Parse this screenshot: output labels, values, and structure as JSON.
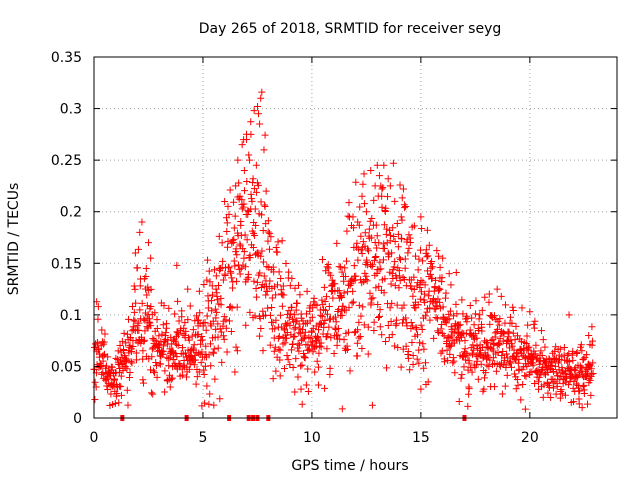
{
  "chart_data": {
    "type": "scatter",
    "title": "Day 265 of 2018, SRMTID for receiver seyg",
    "xlabel": "GPS time / hours",
    "ylabel": "SRMTID / TECUs",
    "xlim": [
      0,
      24
    ],
    "ylim": [
      0,
      0.35
    ],
    "xticks": [
      0,
      5,
      10,
      15,
      20
    ],
    "xtick_labels": [
      "0",
      "5",
      "10",
      "15",
      "20"
    ],
    "yticks": [
      0,
      0.05,
      0.1,
      0.15,
      0.2,
      0.25,
      0.3,
      0.35
    ],
    "ytick_labels": [
      "0",
      "0.05",
      "0.1",
      "0.15",
      "0.2",
      "0.25",
      "0.3",
      "0.35"
    ],
    "grid": true,
    "marker": "plus",
    "color": "#ff0000",
    "trend": [
      [
        0.0,
        0.06
      ],
      [
        0.4,
        0.055
      ],
      [
        0.7,
        0.04
      ],
      [
        1.0,
        0.035
      ],
      [
        1.3,
        0.05
      ],
      [
        1.7,
        0.07
      ],
      [
        2.0,
        0.1
      ],
      [
        2.4,
        0.09
      ],
      [
        2.8,
        0.075
      ],
      [
        3.2,
        0.065
      ],
      [
        3.7,
        0.06
      ],
      [
        4.1,
        0.07
      ],
      [
        4.5,
        0.06
      ],
      [
        5.0,
        0.075
      ],
      [
        5.5,
        0.1
      ],
      [
        5.9,
        0.12
      ],
      [
        6.3,
        0.15
      ],
      [
        6.7,
        0.18
      ],
      [
        7.0,
        0.19
      ],
      [
        7.4,
        0.175
      ],
      [
        7.8,
        0.14
      ],
      [
        8.2,
        0.12
      ],
      [
        8.7,
        0.1
      ],
      [
        9.2,
        0.085
      ],
      [
        9.7,
        0.075
      ],
      [
        10.2,
        0.08
      ],
      [
        10.7,
        0.095
      ],
      [
        11.2,
        0.11
      ],
      [
        11.7,
        0.125
      ],
      [
        12.1,
        0.14
      ],
      [
        12.5,
        0.155
      ],
      [
        12.9,
        0.16
      ],
      [
        13.3,
        0.155
      ],
      [
        13.8,
        0.14
      ],
      [
        14.3,
        0.125
      ],
      [
        14.8,
        0.11
      ],
      [
        15.2,
        0.12
      ],
      [
        15.6,
        0.11
      ],
      [
        16.0,
        0.09
      ],
      [
        16.5,
        0.08
      ],
      [
        17.0,
        0.07
      ],
      [
        17.5,
        0.065
      ],
      [
        18.0,
        0.075
      ],
      [
        18.5,
        0.07
      ],
      [
        19.0,
        0.065
      ],
      [
        19.5,
        0.06
      ],
      [
        20.0,
        0.06
      ],
      [
        20.5,
        0.05
      ],
      [
        21.0,
        0.045
      ],
      [
        21.5,
        0.045
      ],
      [
        22.0,
        0.04
      ],
      [
        22.5,
        0.045
      ],
      [
        22.9,
        0.05
      ]
    ],
    "extra_points": [
      [
        7.7,
        0.316
      ],
      [
        7.65,
        0.31
      ],
      [
        7.55,
        0.295
      ],
      [
        7.35,
        0.298
      ],
      [
        7.6,
        0.285
      ],
      [
        7.0,
        0.27
      ],
      [
        6.8,
        0.265
      ],
      [
        7.2,
        0.275
      ],
      [
        7.8,
        0.26
      ],
      [
        6.6,
        0.25
      ],
      [
        7.1,
        0.255
      ],
      [
        7.45,
        0.245
      ],
      [
        6.9,
        0.24
      ],
      [
        7.3,
        0.232
      ],
      [
        6.5,
        0.225
      ],
      [
        7.5,
        0.228
      ],
      [
        7.9,
        0.22
      ],
      [
        6.7,
        0.215
      ],
      [
        7.85,
        0.205
      ],
      [
        13.0,
        0.245
      ],
      [
        13.3,
        0.245
      ],
      [
        12.7,
        0.24
      ],
      [
        13.1,
        0.235
      ],
      [
        13.5,
        0.232
      ],
      [
        13.6,
        0.225
      ],
      [
        12.9,
        0.225
      ],
      [
        13.2,
        0.215
      ],
      [
        14.2,
        0.222
      ],
      [
        12.3,
        0.215
      ],
      [
        13.8,
        0.21
      ],
      [
        14.3,
        0.205
      ],
      [
        12.5,
        0.2
      ],
      [
        14.1,
        0.195
      ],
      [
        15.0,
        0.195
      ],
      [
        12.1,
        0.19
      ],
      [
        14.6,
        0.185
      ],
      [
        15.3,
        0.182
      ],
      [
        2.2,
        0.19
      ],
      [
        2.1,
        0.18
      ],
      [
        1.9,
        0.16
      ],
      [
        2.5,
        0.17
      ],
      [
        2.6,
        0.155
      ],
      [
        2.4,
        0.145
      ],
      [
        3.8,
        0.148
      ],
      [
        4.3,
        0.125
      ],
      [
        5.6,
        0.125
      ],
      [
        16.0,
        0.155
      ],
      [
        16.3,
        0.14
      ],
      [
        18.5,
        0.125
      ],
      [
        20.0,
        0.103
      ],
      [
        19.9,
        0.09
      ],
      [
        21.8,
        0.1
      ],
      [
        22.7,
        0.08
      ],
      [
        0.2,
        0.108
      ],
      [
        0.1,
        0.03
      ],
      [
        10.3,
        0.032
      ],
      [
        9.5,
        0.028
      ],
      [
        22.4,
        0.01
      ],
      [
        15.0,
        0.028
      ],
      [
        3.5,
        0.03
      ],
      [
        17.2,
        0.03
      ]
    ],
    "zero_markers_x": [
      1.3,
      4.25,
      6.2,
      7.1,
      7.3,
      7.5,
      8.0,
      17.0
    ],
    "seed": 265
  }
}
